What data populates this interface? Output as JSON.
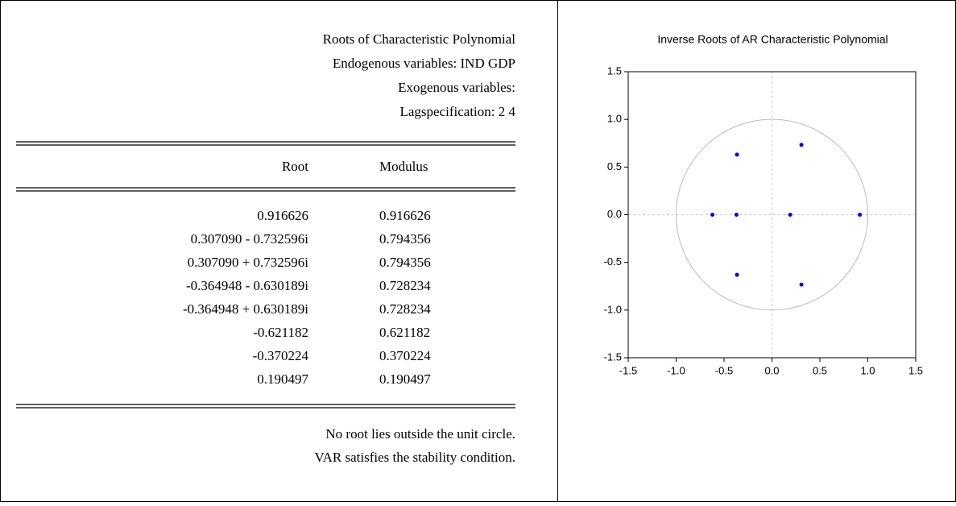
{
  "table": {
    "header": [
      "Roots of Characteristic Polynomial",
      "Endogenous variables: IND GDP",
      "Exogenous variables:",
      "Lagspecification: 2 4"
    ],
    "columns": [
      "Root",
      "Modulus"
    ],
    "rows": [
      [
        "0.916626",
        "0.916626"
      ],
      [
        "0.307090 - 0.732596i",
        "0.794356"
      ],
      [
        "0.307090 + 0.732596i",
        "0.794356"
      ],
      [
        "-0.364948 - 0.630189i",
        "0.728234"
      ],
      [
        "-0.364948 + 0.630189i",
        "0.728234"
      ],
      [
        "-0.621182",
        "0.621182"
      ],
      [
        "-0.370224",
        "0.370224"
      ],
      [
        "0.190497",
        "0.190497"
      ]
    ],
    "notes": [
      "No root lies outside the unit circle.",
      "VAR satisfies the stability condition."
    ]
  },
  "chart_data": {
    "type": "scatter",
    "title": "Inverse Roots of AR Characteristic Polynomial",
    "x": [
      0.916626,
      0.30709,
      0.30709,
      -0.364948,
      -0.364948,
      -0.621182,
      -0.370224,
      0.190497
    ],
    "values": [
      0,
      -0.732596,
      0.732596,
      -0.630189,
      0.630189,
      0,
      0,
      0
    ],
    "color": "#0000ff",
    "xlim": [
      -1.5,
      1.5
    ],
    "ylim": [
      -1.5,
      1.5
    ],
    "xticks": [
      -1.5,
      {
        "value": -1.0,
        "label": "-1.0"
      },
      -0.5,
      {
        "value": 0.0,
        "label": "0.0"
      },
      0.5,
      {
        "value": 1.0,
        "label": "1.0"
      },
      1.5
    ],
    "yticks": [
      -1.5,
      {
        "value": -1.0,
        "label": "-1.0"
      },
      -0.5,
      {
        "value": 0.0,
        "label": "0.0"
      },
      0.5,
      {
        "value": 1.0,
        "label": "1.0"
      },
      1.5
    ]
  }
}
